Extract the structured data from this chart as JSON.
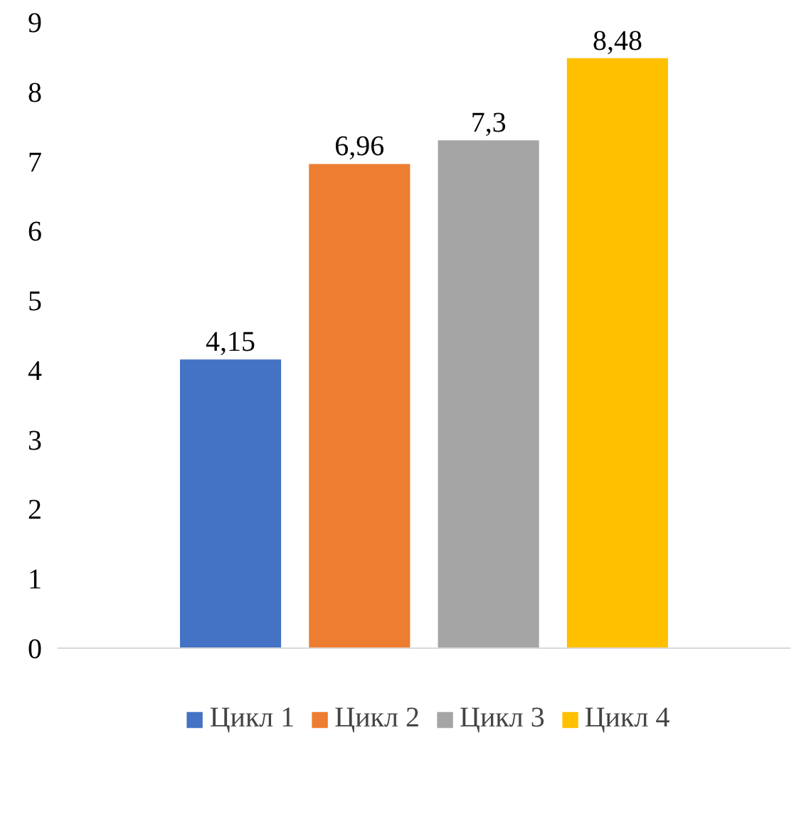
{
  "chart_data": {
    "type": "bar",
    "categories": [
      null
    ],
    "series": [
      {
        "name": "Цикл 1",
        "color": "#4472c4",
        "values": [
          4.15
        ],
        "value_labels": [
          "4,15"
        ]
      },
      {
        "name": "Цикл 2",
        "color": "#ed7d31",
        "values": [
          6.96
        ],
        "value_labels": [
          "6,96"
        ]
      },
      {
        "name": "Цикл 3",
        "color": "#a5a5a5",
        "values": [
          7.3
        ],
        "value_labels": [
          "7,3"
        ]
      },
      {
        "name": "Цикл 4",
        "color": "#ffc000",
        "values": [
          8.48
        ],
        "value_labels": [
          "8,48"
        ]
      }
    ],
    "ylim": [
      0,
      9
    ],
    "yticks": [
      0,
      1,
      2,
      3,
      4,
      5,
      6,
      7,
      8,
      9
    ],
    "grid": false,
    "legend": "bottom"
  }
}
